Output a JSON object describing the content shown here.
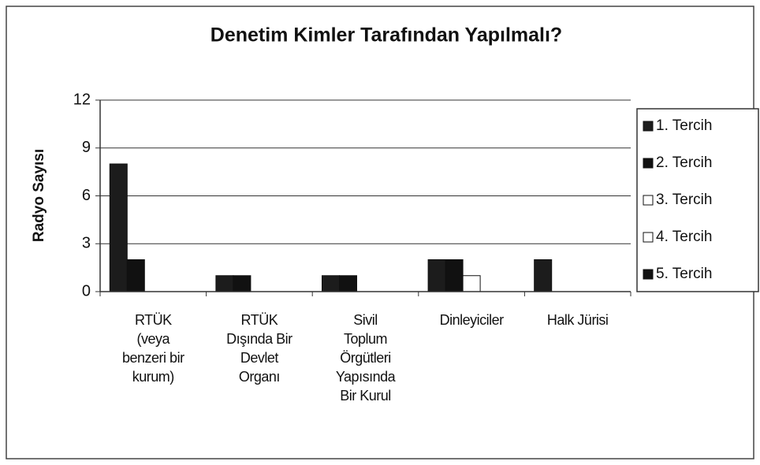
{
  "chart_data": {
    "type": "bar",
    "title": "Denetim Kimler Tarafından Yapılmalı?",
    "y_label": "Radyo Sayısı",
    "categories": [
      "RTÜK\n(veya\nbenzeri bir\nkurum)",
      "RTÜK\nDışında Bir\nDevlet\nOrganı",
      "Sivil\nToplum\nÖrgütleri\nYapısında\nBir Kurul",
      "Dinleyiciler",
      "Halk Jürisi"
    ],
    "series": [
      {
        "name": "1. Tercih",
        "color": "#1c1c1c",
        "values": [
          8,
          1,
          1,
          2,
          2
        ]
      },
      {
        "name": "2. Tercih",
        "color": "#111111",
        "values": [
          2,
          1,
          1,
          2,
          0
        ]
      },
      {
        "name": "3. Tercih",
        "color": "#ffffff",
        "values": [
          0,
          0,
          0,
          1,
          0
        ]
      },
      {
        "name": "4. Tercih",
        "color": "#ffffff",
        "values": [
          0,
          0,
          0,
          0,
          0
        ]
      },
      {
        "name": "5. Tercih",
        "color": "#111111",
        "values": [
          0,
          0,
          0,
          0,
          0
        ]
      }
    ],
    "ylim": [
      0,
      12
    ],
    "yticks": [
      0,
      3,
      6,
      9,
      12
    ],
    "grid": true,
    "legend": "right"
  }
}
